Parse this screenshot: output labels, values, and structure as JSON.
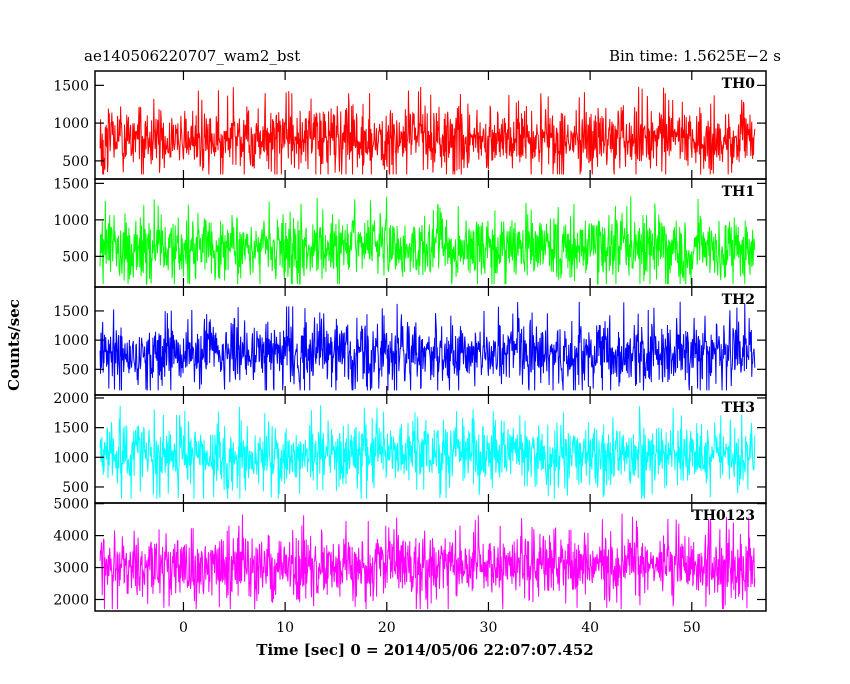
{
  "header": {
    "left_title": "ae140506220707_wam2_bst",
    "right_title": "Bin time: 1.5625E−2 s"
  },
  "chart_data": {
    "type": "line",
    "title": "ae140506220707_wam2_bst",
    "subtitle": "Bin time: 1.5625E−2 s",
    "xlabel": "Time [sec] 0 = 2014/05/06 22:07:07.452",
    "ylabel": "Counts/sec",
    "xlim": [
      -8.7,
      57.3
    ],
    "xticks": [
      0,
      10,
      20,
      30,
      40,
      50
    ],
    "xticklabels": [
      "0",
      "10",
      "20",
      "30",
      "40",
      "50"
    ],
    "data_range": [
      -8.2,
      56.2
    ],
    "bin_time_s": 0.015625,
    "grid": false,
    "panels": [
      {
        "name": "TH0",
        "color": "#ff0000",
        "ylim": [
          260,
          1690
        ],
        "yticks": [
          500,
          1000,
          1500
        ],
        "yticklabels": [
          "500",
          "1000",
          "1500"
        ],
        "mean": 800,
        "min": 320,
        "max": 1650
      },
      {
        "name": "TH1",
        "color": "#00ff00",
        "ylim": [
          80,
          1560
        ],
        "yticks": [
          500,
          1000,
          1500
        ],
        "yticklabels": [
          "500",
          "1000",
          "1500"
        ],
        "mean": 620,
        "min": 120,
        "max": 1500
      },
      {
        "name": "TH2",
        "color": "#0000ff",
        "ylim": [
          60,
          1910
        ],
        "yticks": [
          500,
          1000,
          1500
        ],
        "yticklabels": [
          "500",
          "1000",
          "1500"
        ],
        "mean": 780,
        "min": 140,
        "max": 1850
      },
      {
        "name": "TH3",
        "color": "#00ffff",
        "ylim": [
          230,
          2050
        ],
        "yticks": [
          500,
          1000,
          1500,
          2000
        ],
        "yticklabels": [
          "500",
          "1000",
          "1500",
          "2000"
        ],
        "mean": 1050,
        "min": 300,
        "max": 2000
      },
      {
        "name": "TH0123",
        "color": "#ff00ff",
        "ylim": [
          1640,
          5020
        ],
        "yticks": [
          2000,
          3000,
          4000,
          5000
        ],
        "yticklabels": [
          "2000",
          "3000",
          "4000",
          "5000"
        ],
        "mean": 3050,
        "min": 1700,
        "max": 4900
      }
    ]
  }
}
